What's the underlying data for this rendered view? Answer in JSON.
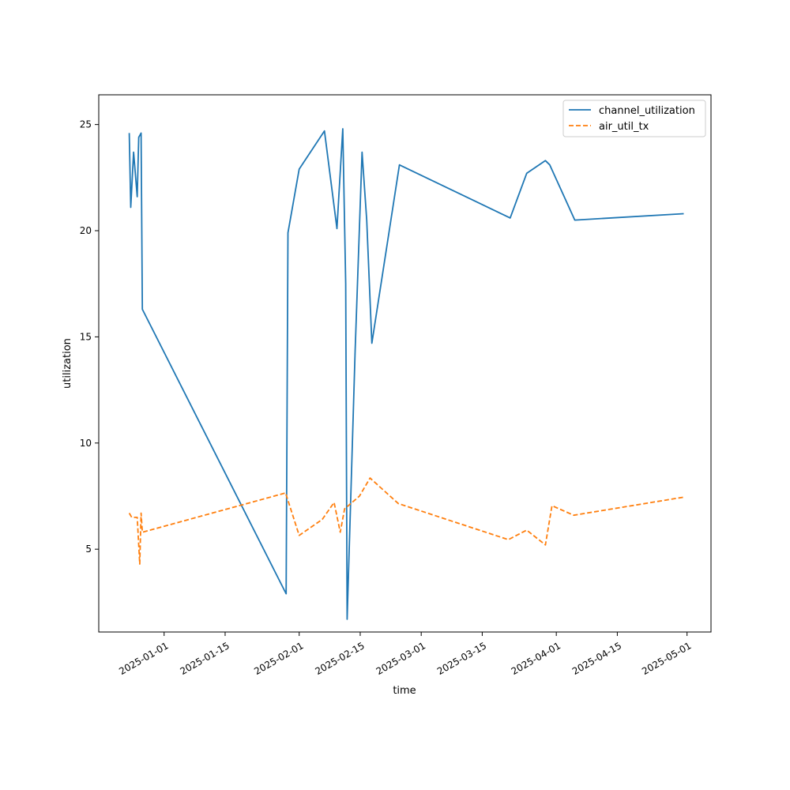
{
  "chart_data": {
    "type": "line",
    "xlabel": "time",
    "ylabel": "utilization",
    "x_ticks": [
      "2025-01-01",
      "2025-01-15",
      "2025-02-01",
      "2025-02-15",
      "2025-03-01",
      "2025-03-15",
      "2025-04-01",
      "2025-04-15",
      "2025-05-01"
    ],
    "y_ticks": [
      5,
      10,
      15,
      20,
      25
    ],
    "xlim": [
      "2024-12-17T00:00",
      "2025-05-06T12:00"
    ],
    "ylim": [
      1.1,
      26.4
    ],
    "legend_position": "top-right",
    "grid": false,
    "series": [
      {
        "name": "channel_utilization",
        "color": "#1f77b4",
        "dash": "solid",
        "points": [
          [
            "2024-12-24T00:00",
            24.6
          ],
          [
            "2024-12-24T08:00",
            21.1
          ],
          [
            "2024-12-25T00:00",
            23.7
          ],
          [
            "2024-12-25T20:00",
            21.6
          ],
          [
            "2024-12-26T04:00",
            24.4
          ],
          [
            "2024-12-26T17:00",
            24.6
          ],
          [
            "2024-12-27T00:00",
            16.3
          ],
          [
            "2025-01-29T00:00",
            2.9
          ],
          [
            "2025-01-29T10:00",
            19.9
          ],
          [
            "2025-02-01T00:00",
            22.9
          ],
          [
            "2025-02-06T19:00",
            24.7
          ],
          [
            "2025-02-09T16:00",
            20.1
          ],
          [
            "2025-02-11T00:00",
            24.8
          ],
          [
            "2025-02-11T16:00",
            17.5
          ],
          [
            "2025-02-12T00:00",
            1.7
          ],
          [
            "2025-02-13T20:00",
            14.3
          ],
          [
            "2025-02-15T10:00",
            23.7
          ],
          [
            "2025-02-16T12:00",
            20.5
          ],
          [
            "2025-02-17T16:00",
            14.7
          ],
          [
            "2025-02-24T00:00",
            23.1
          ],
          [
            "2025-03-21T10:00",
            20.6
          ],
          [
            "2025-03-25T05:00",
            22.7
          ],
          [
            "2025-03-29T12:00",
            23.3
          ],
          [
            "2025-03-30T12:00",
            23.1
          ],
          [
            "2025-04-05T06:00",
            20.5
          ],
          [
            "2025-04-30T06:00",
            20.8
          ]
        ]
      },
      {
        "name": "air_util_tx",
        "color": "#ff7f0e",
        "dash": "dashed",
        "points": [
          [
            "2024-12-24T00:00",
            6.7
          ],
          [
            "2024-12-24T14:00",
            6.5
          ],
          [
            "2024-12-25T20:00",
            6.5
          ],
          [
            "2024-12-26T10:00",
            4.3
          ],
          [
            "2024-12-26T17:00",
            6.7
          ],
          [
            "2024-12-27T00:00",
            5.8
          ],
          [
            "2025-01-28T21:00",
            7.65
          ],
          [
            "2025-02-01T00:00",
            5.65
          ],
          [
            "2025-02-06T07:00",
            6.4
          ],
          [
            "2025-02-09T00:00",
            7.2
          ],
          [
            "2025-02-10T10:00",
            5.8
          ],
          [
            "2025-02-11T10:00",
            6.9
          ],
          [
            "2025-02-14T20:00",
            7.5
          ],
          [
            "2025-02-17T06:00",
            8.35
          ],
          [
            "2025-02-23T18:00",
            7.15
          ],
          [
            "2025-03-21T00:00",
            5.45
          ],
          [
            "2025-03-25T05:00",
            5.9
          ],
          [
            "2025-03-29T12:00",
            5.2
          ],
          [
            "2025-03-31T00:00",
            7.05
          ],
          [
            "2025-04-05T00:00",
            6.6
          ],
          [
            "2025-04-30T06:00",
            7.45
          ]
        ]
      }
    ]
  }
}
